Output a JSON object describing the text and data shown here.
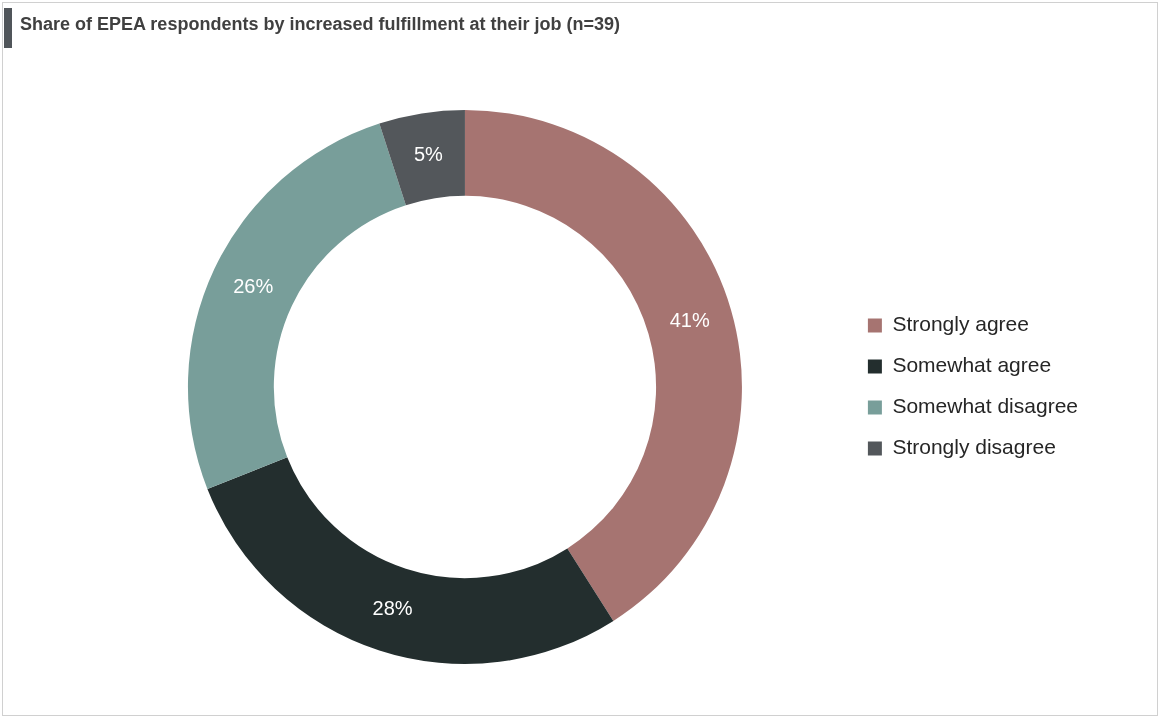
{
  "chart_data": {
    "type": "donut",
    "title": "Share of EPEA respondents by increased fulfillment at their job (n=39)",
    "categories": [
      "Strongly agree",
      "Somewhat agree",
      "Somewhat disagree",
      "Strongly disagree"
    ],
    "values": [
      41,
      28,
      26,
      5
    ],
    "colors": [
      "#a67471",
      "#232e2e",
      "#789e9a",
      "#53575b"
    ],
    "value_labels": [
      "41%",
      "28%",
      "26%",
      "5%"
    ],
    "legend": "right"
  }
}
